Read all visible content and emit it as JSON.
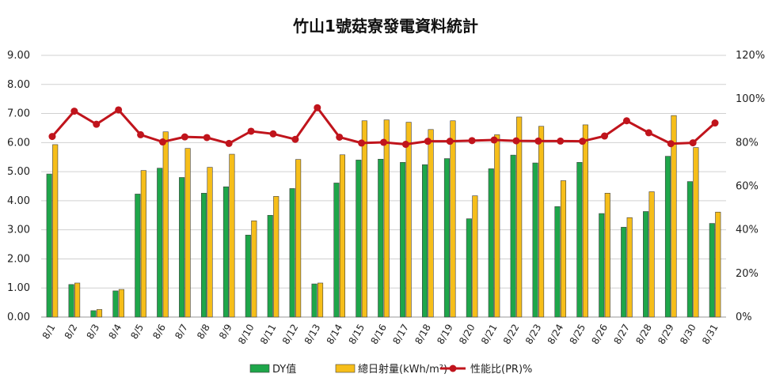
{
  "chart_data": {
    "type": "bar",
    "title": "竹山1號菇寮發電資料統計",
    "categories": [
      "8/1",
      "8/2",
      "8/3",
      "8/4",
      "8/5",
      "8/6",
      "8/7",
      "8/8",
      "8/9",
      "8/10",
      "8/11",
      "8/12",
      "8/13",
      "8/14",
      "8/15",
      "8/16",
      "8/17",
      "8/18",
      "8/19",
      "8/20",
      "8/21",
      "8/22",
      "8/23",
      "8/24",
      "8/25",
      "8/26",
      "8/27",
      "8/28",
      "8/29",
      "8/30",
      "8/31"
    ],
    "series": [
      {
        "name": "DY值",
        "type": "bar",
        "axis": "left",
        "color": "#1ea64a",
        "values": [
          4.92,
          1.12,
          0.22,
          0.9,
          4.23,
          5.12,
          4.8,
          4.26,
          4.48,
          2.82,
          3.5,
          4.42,
          1.14,
          4.61,
          5.4,
          5.43,
          5.32,
          5.24,
          5.45,
          3.38,
          5.1,
          5.57,
          5.3,
          3.8,
          5.32,
          3.56,
          3.09,
          3.63,
          5.53,
          4.66,
          3.22
        ]
      },
      {
        "name": "總日射量(kWh/m²)",
        "type": "bar",
        "axis": "left",
        "color": "#f6be1a",
        "values": [
          5.93,
          1.17,
          0.26,
          0.95,
          5.04,
          6.37,
          5.8,
          5.15,
          5.6,
          3.31,
          4.15,
          5.42,
          1.17,
          5.58,
          6.75,
          6.78,
          6.7,
          6.45,
          6.75,
          4.17,
          6.27,
          6.88,
          6.56,
          4.69,
          6.61,
          4.26,
          3.42,
          4.31,
          6.93,
          5.83,
          3.61
        ]
      },
      {
        "name": "性能比(PR)%",
        "type": "line",
        "axis": "right",
        "color": "#c0141c",
        "values": [
          82.8,
          94.4,
          88.4,
          95.0,
          83.6,
          80.3,
          82.6,
          82.3,
          79.6,
          85.2,
          84.0,
          81.5,
          96.0,
          82.5,
          79.8,
          80.1,
          79.2,
          80.6,
          80.6,
          80.9,
          81.2,
          80.8,
          80.7,
          80.7,
          80.6,
          83.0,
          90.0,
          84.5,
          79.5,
          79.9,
          89.0
        ]
      }
    ],
    "y_left": {
      "min": 0,
      "max": 9,
      "step": 1,
      "tick_labels": [
        "0.00",
        "1.00",
        "2.00",
        "3.00",
        "4.00",
        "5.00",
        "6.00",
        "7.00",
        "8.00",
        "9.00"
      ]
    },
    "y_right": {
      "min": 0,
      "max": 120,
      "step": 20,
      "tick_labels": [
        "0%",
        "20%",
        "40%",
        "60%",
        "80%",
        "100%",
        "120%"
      ]
    },
    "grid": true,
    "legend_position": "bottom"
  }
}
